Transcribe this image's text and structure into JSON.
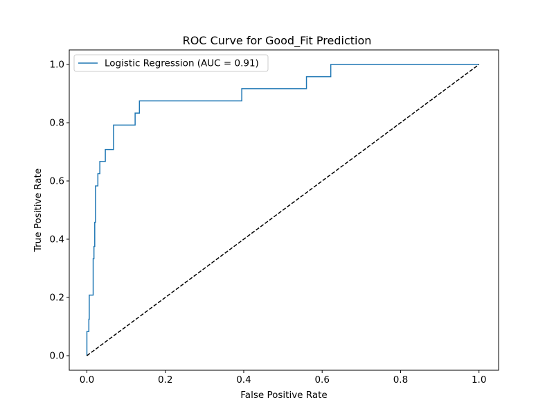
{
  "chart_data": {
    "type": "line",
    "title": "ROC Curve for Good_Fit Prediction",
    "xlabel": "False Positive Rate",
    "ylabel": "True Positive Rate",
    "xlim": [
      -0.045,
      1.05
    ],
    "ylim": [
      -0.05,
      1.05
    ],
    "xticks": [
      "0.0",
      "0.2",
      "0.4",
      "0.6",
      "0.8",
      "1.0"
    ],
    "yticks": [
      "0.0",
      "0.2",
      "0.4",
      "0.6",
      "0.8",
      "1.0"
    ],
    "grid": false,
    "legend_position": "upper-left",
    "series": [
      {
        "name": "Logistic Regression (AUC = 0.91)",
        "color": "#1f77b4",
        "style": "solid",
        "x": [
          0.0,
          0.0,
          0.005,
          0.005,
          0.006,
          0.006,
          0.016,
          0.016,
          0.018,
          0.018,
          0.02,
          0.02,
          0.022,
          0.022,
          0.028,
          0.028,
          0.033,
          0.033,
          0.047,
          0.047,
          0.068,
          0.068,
          0.123,
          0.123,
          0.134,
          0.134,
          0.395,
          0.395,
          0.56,
          0.56,
          0.622,
          0.622,
          1.0
        ],
        "y": [
          0.0,
          0.083,
          0.083,
          0.125,
          0.125,
          0.208,
          0.208,
          0.333,
          0.333,
          0.375,
          0.375,
          0.458,
          0.458,
          0.583,
          0.583,
          0.625,
          0.625,
          0.667,
          0.667,
          0.708,
          0.708,
          0.792,
          0.792,
          0.833,
          0.833,
          0.875,
          0.875,
          0.917,
          0.917,
          0.958,
          0.958,
          1.0,
          1.0
        ]
      },
      {
        "name": "",
        "color": "#000000",
        "style": "dashed",
        "x": [
          0.0,
          1.0
        ],
        "y": [
          0.0,
          1.0
        ]
      }
    ]
  }
}
